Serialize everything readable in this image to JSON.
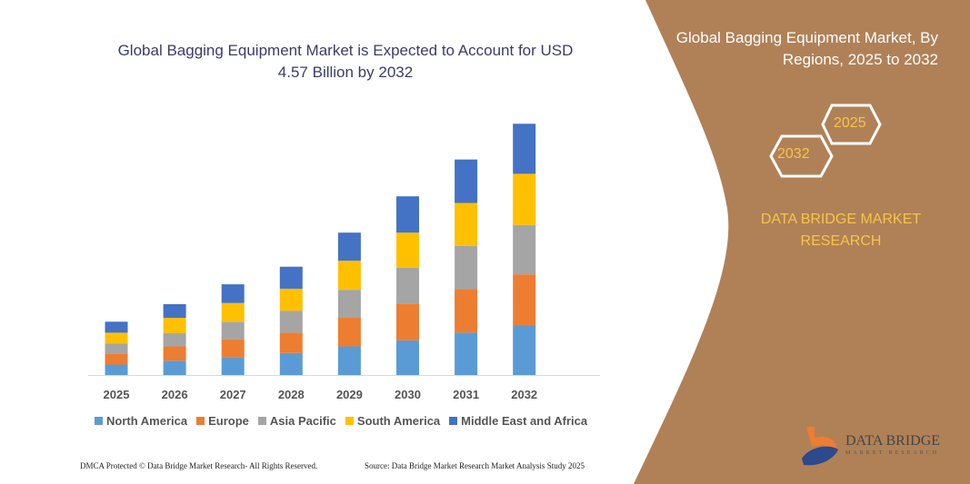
{
  "title": "Global Bagging Equipment Market is Expected to Account for USD 4.57 Billion by 2032",
  "side_panel": {
    "title": "Global Bagging Equipment Market, By Regions, 2025 to 2032",
    "hex_start": "2025",
    "hex_end": "2032",
    "brand": "DATA BRIDGE MARKET RESEARCH",
    "logo_name": "DATA BRIDGE",
    "logo_sub": "MARKET RESEARCH",
    "color": "#b08157"
  },
  "footer": {
    "left": "DMCA Protected © Data Bridge Market Research- All Rights Reserved.",
    "right": "Source: Data Bridge Market Research  Market Analysis Study 2025"
  },
  "chart_data": {
    "type": "bar",
    "stacked": true,
    "categories": [
      "2025",
      "2026",
      "2027",
      "2028",
      "2029",
      "2030",
      "2031",
      "2032"
    ],
    "series": [
      {
        "name": "North America",
        "color": "#5b9bd5",
        "values": [
          0.19,
          0.26,
          0.32,
          0.4,
          0.52,
          0.63,
          0.77,
          0.9
        ]
      },
      {
        "name": "Europe",
        "color": "#ed7d31",
        "values": [
          0.2,
          0.26,
          0.33,
          0.37,
          0.52,
          0.67,
          0.79,
          0.93
        ]
      },
      {
        "name": "Asia Pacific",
        "color": "#a5a5a5",
        "values": [
          0.18,
          0.24,
          0.32,
          0.4,
          0.51,
          0.65,
          0.79,
          0.9
        ]
      },
      {
        "name": "South America",
        "color": "#ffc000",
        "values": [
          0.2,
          0.28,
          0.34,
          0.4,
          0.53,
          0.64,
          0.78,
          0.93
        ]
      },
      {
        "name": "Middle East and Africa",
        "color": "#4472c4",
        "values": [
          0.2,
          0.25,
          0.34,
          0.4,
          0.51,
          0.66,
          0.79,
          0.91
        ]
      }
    ],
    "ylim": [
      0,
      4.57
    ],
    "grid": false,
    "legend": "bottom"
  }
}
